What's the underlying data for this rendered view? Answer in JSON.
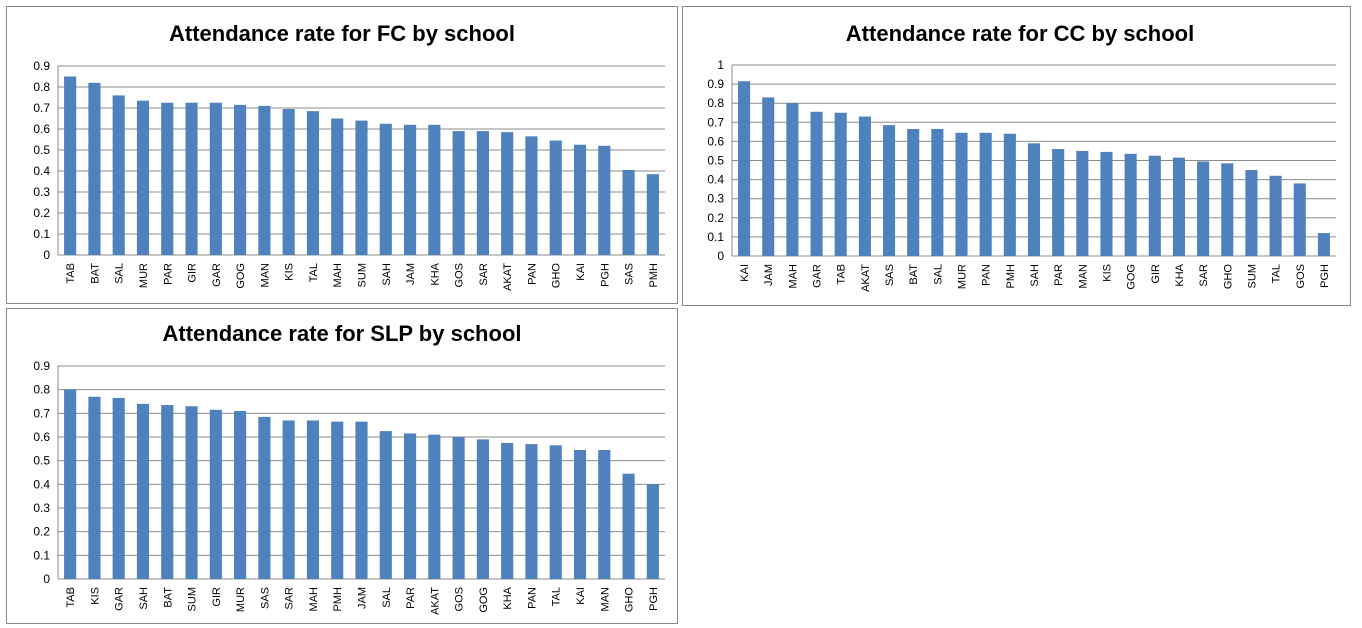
{
  "chart_data": [
    {
      "type": "bar",
      "title": "Attendance rate for FC by school",
      "color": "#4f81bd",
      "grid": true,
      "categories": [
        "TAB",
        "BAT",
        "SAL",
        "MUR",
        "PAR",
        "GIR",
        "GAR",
        "GOG",
        "MAN",
        "KIS",
        "TAL",
        "MAH",
        "SUM",
        "SAH",
        "JAM",
        "KHA",
        "GOS",
        "SAR",
        "AKAT",
        "PAN",
        "GHO",
        "KAI",
        "PGH",
        "SAS",
        "PMH"
      ],
      "values": [
        0.85,
        0.82,
        0.76,
        0.735,
        0.725,
        0.725,
        0.725,
        0.715,
        0.71,
        0.695,
        0.685,
        0.65,
        0.64,
        0.625,
        0.62,
        0.62,
        0.59,
        0.59,
        0.585,
        0.565,
        0.545,
        0.525,
        0.52,
        0.405,
        0.385
      ],
      "ylim": [
        0,
        0.9
      ],
      "yticks": [
        0,
        0.1,
        0.2,
        0.3,
        0.4,
        0.5,
        0.6,
        0.7,
        0.8,
        0.9
      ]
    },
    {
      "type": "bar",
      "title": "Attendance rate for CC by school",
      "color": "#4f81bd",
      "grid": true,
      "categories": [
        "KAI",
        "JAM",
        "MAH",
        "GAR",
        "TAB",
        "AKAT",
        "SAS",
        "BAT",
        "SAL",
        "MUR",
        "PAN",
        "PMH",
        "SAH",
        "PAR",
        "MAN",
        "KIS",
        "GOG",
        "GIR",
        "KHA",
        "SAR",
        "GHO",
        "SUM",
        "TAL",
        "GOS",
        "PGH"
      ],
      "values": [
        0.915,
        0.83,
        0.8,
        0.755,
        0.75,
        0.73,
        0.685,
        0.665,
        0.665,
        0.645,
        0.645,
        0.64,
        0.59,
        0.56,
        0.55,
        0.545,
        0.535,
        0.525,
        0.515,
        0.495,
        0.485,
        0.45,
        0.42,
        0.38,
        0.12
      ],
      "ylim": [
        0,
        1
      ],
      "yticks": [
        0,
        0.1,
        0.2,
        0.3,
        0.4,
        0.5,
        0.6,
        0.7,
        0.8,
        0.9,
        1
      ]
    },
    {
      "type": "bar",
      "title": "Attendance rate for SLP by school",
      "color": "#4f81bd",
      "grid": true,
      "categories": [
        "TAB",
        "KIS",
        "GAR",
        "SAH",
        "BAT",
        "SUM",
        "GIR",
        "MUR",
        "SAS",
        "SAR",
        "MAH",
        "PMH",
        "JAM",
        "SAL",
        "PAR",
        "AKAT",
        "GOS",
        "GOG",
        "KHA",
        "PAN",
        "TAL",
        "KAI",
        "MAN",
        "GHO",
        "PGH"
      ],
      "values": [
        0.8,
        0.77,
        0.765,
        0.74,
        0.735,
        0.73,
        0.715,
        0.71,
        0.685,
        0.67,
        0.67,
        0.665,
        0.665,
        0.625,
        0.615,
        0.61,
        0.6,
        0.59,
        0.575,
        0.57,
        0.565,
        0.545,
        0.545,
        0.445,
        0.4
      ],
      "ylim": [
        0,
        0.9
      ],
      "yticks": [
        0,
        0.1,
        0.2,
        0.3,
        0.4,
        0.5,
        0.6,
        0.7,
        0.8,
        0.9
      ]
    }
  ]
}
